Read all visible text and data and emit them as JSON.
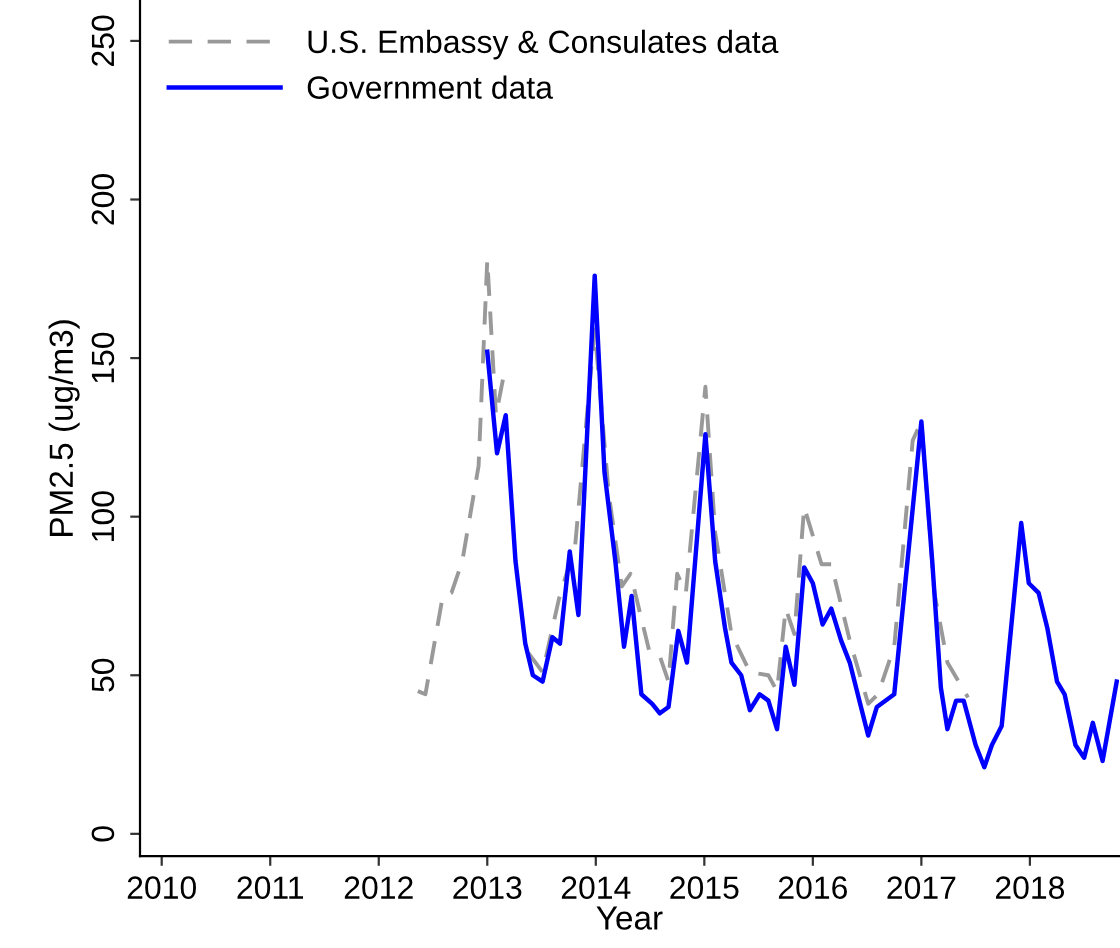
{
  "chart_data": {
    "type": "line",
    "xlabel": "Year",
    "ylabel": "PM2.5 (ug/m3)",
    "xlim": [
      2009.8,
      2018.82
    ],
    "xticks": [
      2010,
      2011,
      2012,
      2013,
      2014,
      2015,
      2016,
      2017,
      2018
    ],
    "ylim": [
      -7,
      262.6
    ],
    "yticks": [
      0,
      50,
      100,
      150,
      200,
      250
    ],
    "grid": false,
    "legend": "top left",
    "marker": "none",
    "series": [
      {
        "name": "U.S. Embassy & Consulates data",
        "color": "#999999",
        "line_style": "dashed",
        "x": [
          2012.36,
          2012.43,
          2012.59,
          2012.67,
          2012.77,
          2012.92,
          2013.0,
          2013.08,
          2013.16,
          2013.26,
          2013.38,
          2013.51,
          2013.66,
          2013.81,
          2013.99,
          2014.12,
          2014.24,
          2014.32,
          2014.49,
          2014.58,
          2014.67,
          2014.75,
          2014.83,
          2015.01,
          2015.1,
          2015.25,
          2015.42,
          2015.59,
          2015.67,
          2015.75,
          2015.83,
          2015.92,
          2016.08,
          2016.17,
          2016.34,
          2016.51,
          2016.6,
          2016.75,
          2016.92,
          2017.0,
          2017.12,
          2017.24,
          2017.43
        ],
        "values": [
          45,
          44,
          75,
          76,
          86,
          116,
          181,
          132,
          146,
          null,
          57,
          51,
          74,
          91,
          159,
          107,
          78,
          82,
          58,
          57,
          48,
          82,
          76,
          141,
          95,
          63,
          51,
          50,
          45,
          71,
          63,
          103,
          85,
          85,
          61,
          41,
          44,
          59,
          124,
          130,
          76,
          54,
          43
        ]
      },
      {
        "name": "Government data",
        "color": "#0000ff",
        "line_style": "solid",
        "x": [
          2013.0,
          2013.09,
          2013.17,
          2013.26,
          2013.35,
          2013.42,
          2013.51,
          2013.6,
          2013.67,
          2013.76,
          2013.84,
          2013.99,
          2014.08,
          2014.18,
          2014.26,
          2014.33,
          2014.42,
          2014.52,
          2014.59,
          2014.67,
          2014.76,
          2014.84,
          2015.01,
          2015.1,
          2015.19,
          2015.25,
          2015.34,
          2015.42,
          2015.51,
          2015.59,
          2015.67,
          2015.75,
          2015.83,
          2015.92,
          2016.0,
          2016.09,
          2016.17,
          2016.26,
          2016.34,
          2016.51,
          2016.59,
          2016.75,
          2016.91,
          2017.0,
          2017.1,
          2017.18,
          2017.24,
          2017.32,
          2017.39,
          2017.5,
          2017.58,
          2017.65,
          2017.74,
          2017.92,
          2017.99,
          2018.08,
          2018.16,
          2018.25,
          2018.32,
          2018.42,
          2018.5,
          2018.58,
          2018.67,
          2018.8
        ],
        "values": [
          152,
          120,
          132,
          86,
          60,
          50,
          48,
          62,
          60,
          89,
          69,
          176,
          114,
          86,
          59,
          75,
          44,
          41,
          38,
          40,
          64,
          54,
          126,
          86,
          65,
          54,
          50,
          39,
          44,
          42,
          33,
          59,
          47,
          84,
          79,
          66,
          71,
          61,
          54,
          31,
          40,
          44,
          99,
          130,
          86,
          46,
          33,
          42,
          42,
          28,
          21,
          28,
          34,
          98,
          79,
          76,
          65,
          48,
          44,
          28,
          24,
          35,
          23,
          48
        ]
      }
    ]
  }
}
